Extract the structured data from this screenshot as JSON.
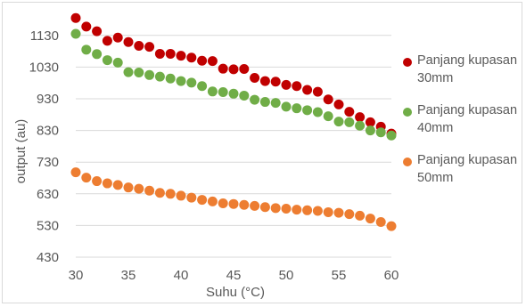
{
  "chart_data": {
    "type": "scatter",
    "title": "",
    "xlabel": "Suhu (°C)",
    "ylabel": "output (au)",
    "xlim": [
      30,
      60
    ],
    "ylim": [
      430,
      1180
    ],
    "xticks": [
      "30",
      "35",
      "40",
      "45",
      "50",
      "55",
      "60"
    ],
    "yticks": [
      "430",
      "530",
      "630",
      "730",
      "830",
      "930",
      "1030",
      "1130"
    ],
    "grid": "horizontal",
    "legend": "right",
    "x": [
      30,
      31,
      32,
      33,
      34,
      35,
      36,
      37,
      38,
      39,
      40,
      41,
      42,
      43,
      44,
      45,
      46,
      47,
      48,
      49,
      50,
      51,
      52,
      53,
      54,
      55,
      56,
      57,
      58,
      59,
      60
    ],
    "series": [
      {
        "name": "Panjang kupasan 30mm",
        "color": "#c00000",
        "values": [
          1185,
          1158,
          1143,
          1113,
          1123,
          1109,
          1097,
          1094,
          1072,
          1072,
          1066,
          1060,
          1050,
          1049,
          1025,
          1023,
          1024,
          996,
          986,
          984,
          974,
          970,
          958,
          952,
          928,
          912,
          889,
          872,
          856,
          842,
          820
        ]
      },
      {
        "name": "Panjang kupasan 40mm",
        "color": "#70ad47",
        "values": [
          1135,
          1085,
          1071,
          1052,
          1044,
          1014,
          1013,
          1005,
          1000,
          994,
          986,
          981,
          970,
          953,
          951,
          946,
          940,
          927,
          920,
          917,
          905,
          900,
          894,
          888,
          875,
          858,
          856,
          845,
          830,
          824,
          814
        ]
      },
      {
        "name": "Panjang kupasan 50mm",
        "color": "#ed7d31",
        "values": [
          698,
          681,
          670,
          663,
          658,
          650,
          646,
          640,
          633,
          630,
          624,
          618,
          611,
          606,
          600,
          598,
          595,
          592,
          588,
          585,
          583,
          580,
          578,
          576,
          572,
          570,
          566,
          561,
          552,
          541,
          528
        ]
      }
    ]
  }
}
